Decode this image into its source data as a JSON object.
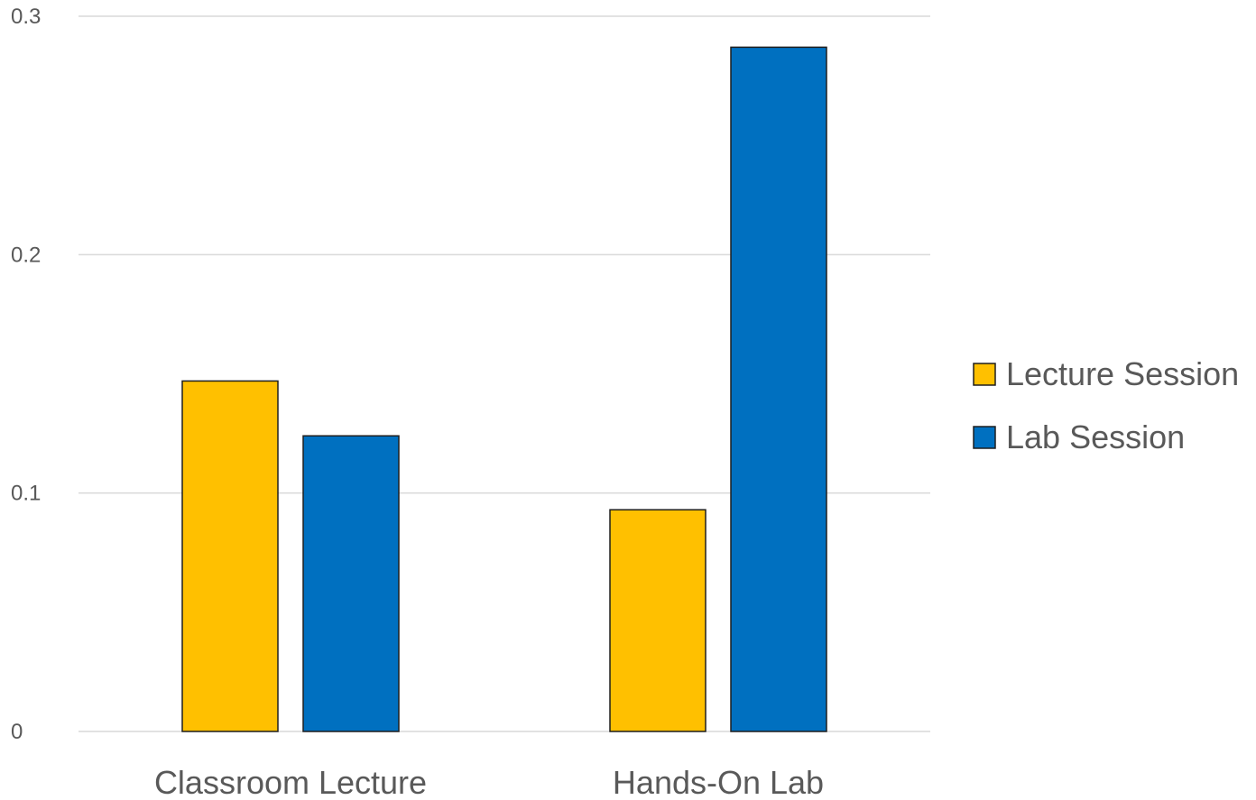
{
  "chart_data": {
    "type": "bar",
    "categories": [
      "Classroom Lecture",
      "Hands-On Lab"
    ],
    "series": [
      {
        "name": "Lecture Session",
        "values": [
          0.147,
          0.093
        ],
        "color": "#FFC000"
      },
      {
        "name": "Lab Session",
        "values": [
          0.124,
          0.287
        ],
        "color": "#0070C0"
      }
    ],
    "ylim": [
      0,
      0.3
    ],
    "yticks": [
      0,
      0.1,
      0.2,
      0.3
    ],
    "ytick_labels": [
      "0",
      "0.1",
      "0.2",
      "0.3"
    ],
    "grid": true,
    "legend_position": "right",
    "colors": {
      "gridline": "#d9d9d9",
      "text": "#595959",
      "bar_outline": "#1f1f1f"
    }
  }
}
